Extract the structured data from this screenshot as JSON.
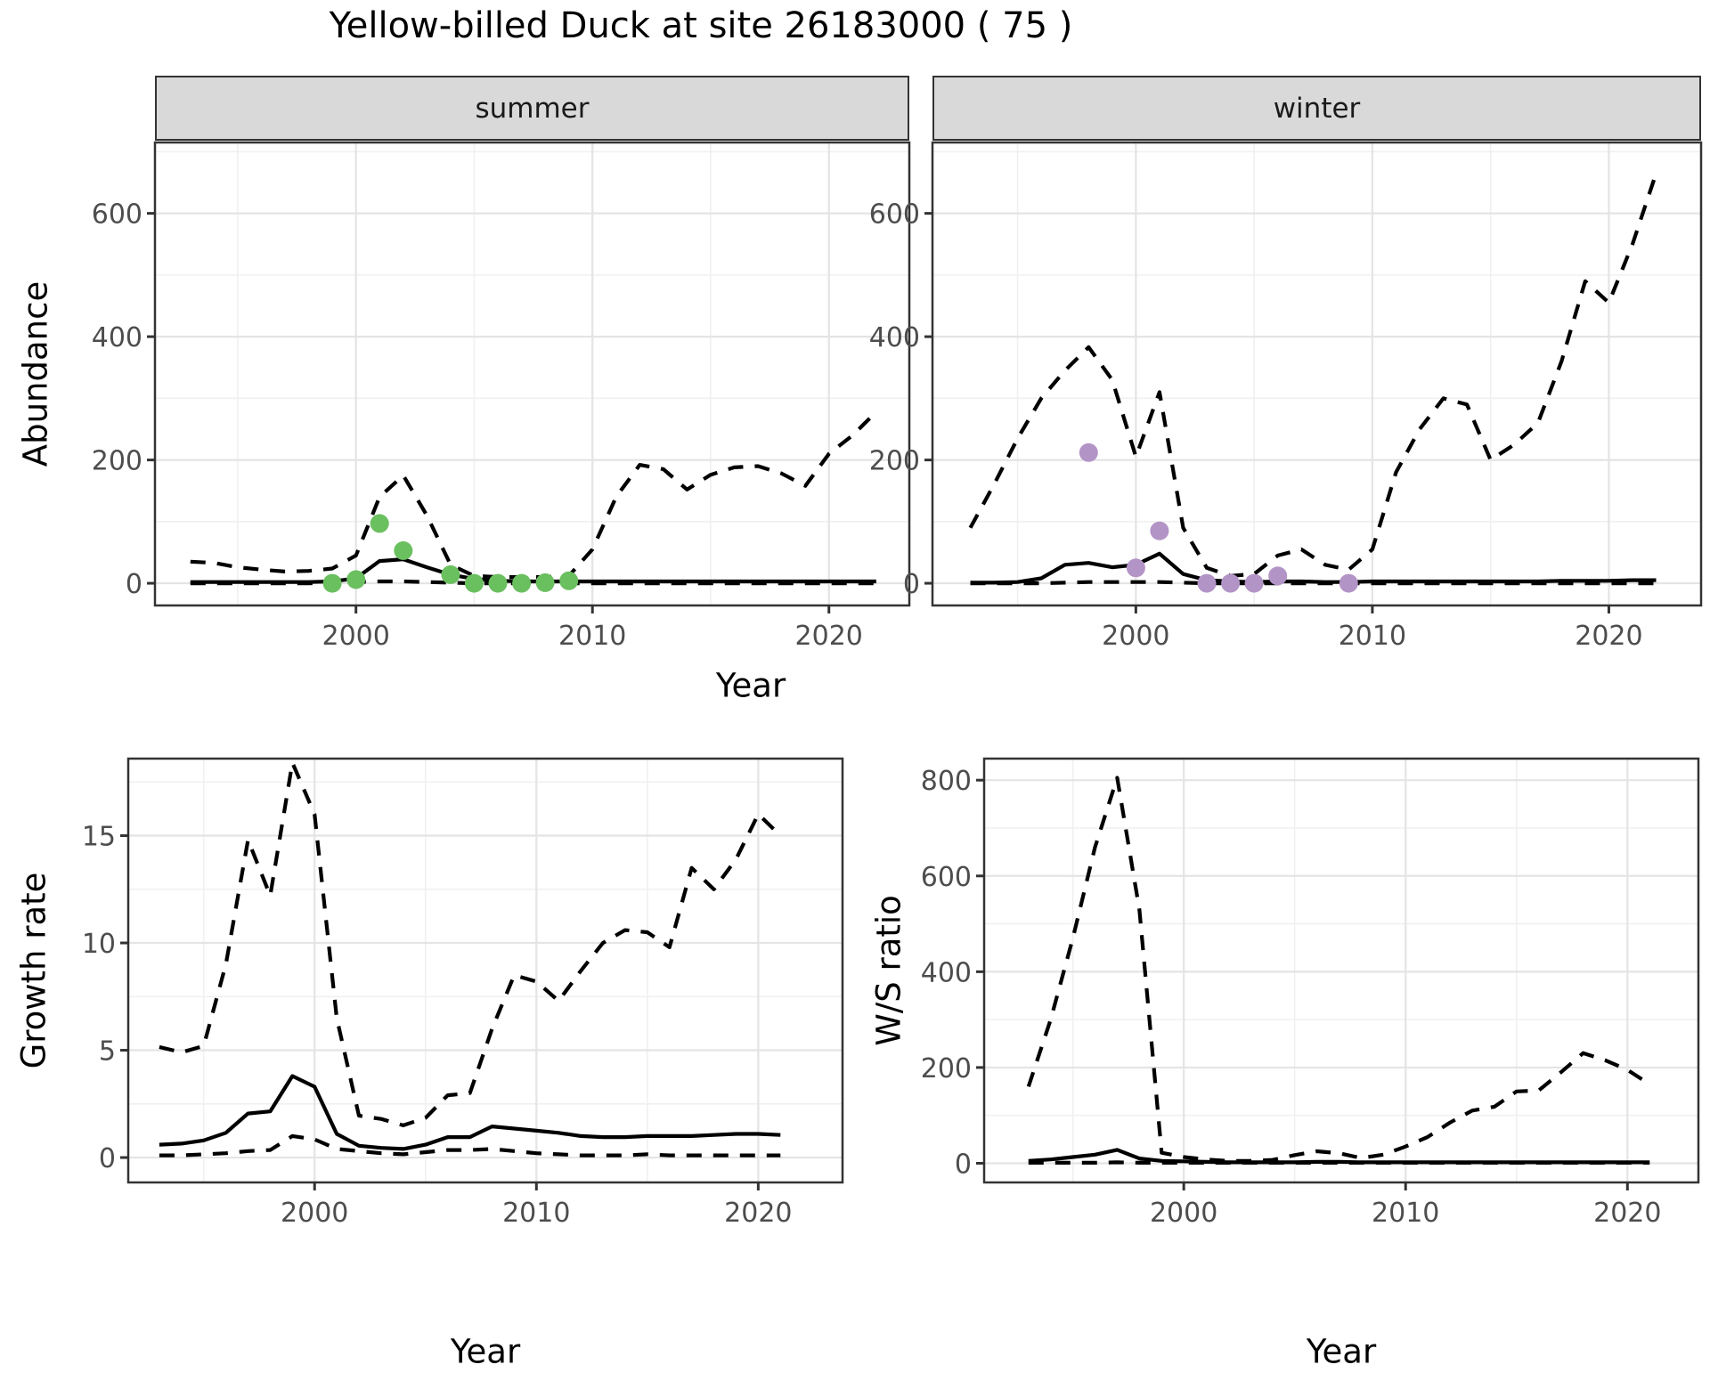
{
  "title": "Yellow-billed Duck at site 26183000 ( 75 )",
  "colors": {
    "line": "#000000",
    "grid_major": "#e4e4e4",
    "grid_minor": "#f0f0f0",
    "panel_border": "#333333",
    "strip_bg": "#d9d9d9",
    "tick_text": "#4d4d4d",
    "summer_points": "#6abf5f",
    "winter_points": "#b394c6"
  },
  "chart_data": [
    {
      "id": "abundance-summer",
      "type": "line",
      "facet": "summer",
      "ylabel": "Abundance",
      "xlabel": "Year",
      "x_range": [
        1991.5,
        2023.4
      ],
      "y_range": [
        -36,
        715
      ],
      "x_ticks": [
        2000,
        2010,
        2020
      ],
      "x_minor": [
        1995,
        2005,
        2015
      ],
      "y_ticks": [
        0,
        200,
        400,
        600
      ],
      "y_minor": [
        100,
        300,
        500,
        700
      ],
      "grid": true,
      "legend": "none",
      "years": [
        1993,
        1994,
        1995,
        1996,
        1997,
        1998,
        1999,
        2000,
        2001,
        2002,
        2003,
        2004,
        2005,
        2006,
        2007,
        2008,
        2009,
        2010,
        2011,
        2012,
        2013,
        2014,
        2015,
        2016,
        2017,
        2018,
        2019,
        2020,
        2021,
        2022
      ],
      "series": [
        {
          "name": "upper-ci",
          "style": "dashed",
          "values": [
            35,
            33,
            26,
            22,
            19,
            20,
            24,
            45,
            140,
            175,
            110,
            30,
            12,
            10,
            10,
            10,
            12,
            55,
            140,
            192,
            185,
            152,
            176,
            188,
            190,
            178,
            158,
            210,
            240,
            278
          ]
        },
        {
          "name": "lower-ci",
          "style": "dashed",
          "values": [
            0,
            0,
            0,
            0,
            0,
            0,
            1,
            2,
            3,
            3,
            2,
            1,
            0,
            0,
            0,
            0,
            0,
            0,
            0,
            0,
            0,
            0,
            0,
            0,
            0,
            0,
            0,
            0,
            0,
            0
          ]
        },
        {
          "name": "median",
          "style": "solid",
          "values": [
            2,
            2,
            2,
            2,
            2,
            2,
            3,
            8,
            36,
            39,
            26,
            14,
            7,
            4,
            3,
            3,
            3,
            3,
            3,
            3,
            3,
            3,
            3,
            3,
            3,
            3,
            3,
            3,
            3,
            3
          ]
        }
      ],
      "points": {
        "name": "observed-counts",
        "color": "#6abf5f",
        "data": [
          [
            1999,
            0
          ],
          [
            2000,
            6
          ],
          [
            2001,
            97
          ],
          [
            2002,
            53
          ],
          [
            2004,
            14
          ],
          [
            2005,
            0
          ],
          [
            2006,
            0
          ],
          [
            2007,
            0
          ],
          [
            2008,
            1
          ],
          [
            2009,
            4
          ]
        ]
      }
    },
    {
      "id": "abundance-winter",
      "type": "line",
      "facet": "winter",
      "ylabel": "Abundance",
      "xlabel": "Year",
      "x_range": [
        1991.4,
        2023.9
      ],
      "y_range": [
        -36,
        715
      ],
      "x_ticks": [
        2000,
        2010,
        2020
      ],
      "x_minor": [
        1995,
        2005,
        2015
      ],
      "y_ticks": [
        0,
        200,
        400,
        600
      ],
      "y_minor": [
        100,
        300,
        500,
        700
      ],
      "grid": true,
      "legend": "none",
      "years": [
        1993,
        1994,
        1995,
        1996,
        1997,
        1998,
        1999,
        2000,
        2001,
        2002,
        2003,
        2004,
        2005,
        2006,
        2007,
        2008,
        2009,
        2010,
        2011,
        2012,
        2013,
        2014,
        2015,
        2016,
        2017,
        2018,
        2019,
        2020,
        2021,
        2022
      ],
      "series": [
        {
          "name": "upper-ci",
          "style": "dashed",
          "values": [
            90,
            160,
            235,
            300,
            345,
            383,
            330,
            205,
            310,
            90,
            25,
            12,
            15,
            45,
            55,
            30,
            22,
            55,
            180,
            250,
            300,
            290,
            200,
            225,
            260,
            360,
            490,
            455,
            550,
            665
          ]
        },
        {
          "name": "lower-ci",
          "style": "dashed",
          "values": [
            0,
            0,
            0,
            0,
            1,
            2,
            2,
            2,
            2,
            1,
            0,
            0,
            0,
            0,
            0,
            0,
            0,
            0,
            0,
            0,
            0,
            0,
            0,
            0,
            0,
            0,
            0,
            0,
            0,
            0
          ]
        },
        {
          "name": "median",
          "style": "solid",
          "values": [
            1,
            1,
            2,
            8,
            30,
            33,
            26,
            30,
            48,
            15,
            5,
            3,
            2,
            3,
            3,
            2,
            2,
            3,
            3,
            3,
            3,
            3,
            3,
            3,
            3,
            4,
            4,
            4,
            5,
            5
          ]
        }
      ],
      "points": {
        "name": "observed-counts",
        "color": "#b394c6",
        "data": [
          [
            1998,
            212
          ],
          [
            2000,
            25
          ],
          [
            2001,
            85
          ],
          [
            2003,
            0
          ],
          [
            2004,
            0
          ],
          [
            2005,
            0
          ],
          [
            2006,
            12
          ],
          [
            2009,
            0
          ]
        ]
      }
    },
    {
      "id": "growth-rate",
      "type": "line",
      "facet": null,
      "ylabel": "Growth rate",
      "xlabel": "Year",
      "x_range": [
        1991.6,
        2023.8
      ],
      "y_range": [
        -1.16,
        18.59
      ],
      "x_ticks": [
        2000,
        2010,
        2020
      ],
      "x_minor": [
        1995,
        2005,
        2015
      ],
      "y_ticks": [
        0,
        5,
        10,
        15
      ],
      "y_minor": [
        2.5,
        7.5,
        12.5,
        17.5
      ],
      "grid": true,
      "legend": "none",
      "years": [
        1993,
        1994,
        1995,
        1996,
        1997,
        1998,
        1999,
        2000,
        2001,
        2002,
        2003,
        2004,
        2005,
        2006,
        2007,
        2008,
        2009,
        2010,
        2011,
        2012,
        2013,
        2014,
        2015,
        2016,
        2017,
        2018,
        2019,
        2020,
        2021
      ],
      "series": [
        {
          "name": "upper-ci",
          "style": "dashed",
          "values": [
            5.15,
            4.9,
            5.2,
            9.0,
            14.8,
            12.2,
            18.4,
            16.0,
            6.5,
            1.95,
            1.8,
            1.5,
            1.85,
            2.9,
            3.0,
            6.0,
            8.5,
            8.2,
            7.3,
            8.7,
            10.0,
            10.6,
            10.5,
            9.8,
            13.5,
            12.5,
            13.9,
            16.0,
            15.0
          ]
        },
        {
          "name": "lower-ci",
          "style": "dashed",
          "values": [
            0.1,
            0.1,
            0.15,
            0.2,
            0.3,
            0.35,
            1.0,
            0.85,
            0.4,
            0.3,
            0.2,
            0.15,
            0.25,
            0.35,
            0.35,
            0.4,
            0.3,
            0.2,
            0.15,
            0.1,
            0.1,
            0.1,
            0.15,
            0.1,
            0.1,
            0.1,
            0.1,
            0.1,
            0.1
          ]
        },
        {
          "name": "median",
          "style": "solid",
          "values": [
            0.6,
            0.65,
            0.8,
            1.15,
            2.05,
            2.15,
            3.8,
            3.3,
            1.1,
            0.55,
            0.45,
            0.4,
            0.6,
            0.95,
            0.95,
            1.45,
            1.35,
            1.25,
            1.15,
            1.0,
            0.95,
            0.95,
            1.0,
            1.0,
            1.0,
            1.05,
            1.1,
            1.1,
            1.05
          ]
        }
      ],
      "points": null
    },
    {
      "id": "ws-ratio",
      "type": "line",
      "facet": null,
      "ylabel": "W/S ratio",
      "xlabel": "Year",
      "x_range": [
        1991.0,
        2023.2
      ],
      "y_range": [
        -40,
        845
      ],
      "x_ticks": [
        2000,
        2010,
        2020
      ],
      "x_minor": [
        1995,
        2005,
        2015
      ],
      "y_ticks": [
        0,
        200,
        400,
        600,
        800
      ],
      "y_minor": [
        100,
        300,
        500,
        700
      ],
      "grid": true,
      "legend": "none",
      "years": [
        1993,
        1994,
        1995,
        1996,
        1997,
        1998,
        1999,
        2000,
        2001,
        2002,
        2003,
        2004,
        2005,
        2006,
        2007,
        2008,
        2009,
        2010,
        2011,
        2012,
        2013,
        2014,
        2015,
        2016,
        2017,
        2018,
        2019,
        2020,
        2021
      ],
      "series": [
        {
          "name": "upper-ci",
          "style": "dashed",
          "values": [
            160,
            300,
            470,
            660,
            805,
            530,
            22,
            13,
            8,
            5,
            5,
            7,
            17,
            25,
            21,
            11,
            18,
            35,
            55,
            85,
            110,
            118,
            150,
            152,
            190,
            230,
            215,
            195,
            165
          ]
        },
        {
          "name": "lower-ci",
          "style": "dashed",
          "values": [
            1,
            1,
            1,
            1,
            2,
            1,
            1,
            1,
            1,
            1,
            1,
            1,
            1,
            1,
            1,
            1,
            1,
            1,
            1,
            1,
            1,
            1,
            1,
            1,
            1,
            1,
            1,
            1,
            1
          ]
        },
        {
          "name": "median",
          "style": "solid",
          "values": [
            5,
            8,
            13,
            18,
            28,
            10,
            5,
            4,
            3,
            2,
            2,
            2,
            2,
            3,
            3,
            2,
            2,
            2,
            2,
            2,
            2,
            2,
            2,
            2,
            2,
            2,
            2,
            2,
            2
          ]
        }
      ],
      "points": null
    }
  ]
}
